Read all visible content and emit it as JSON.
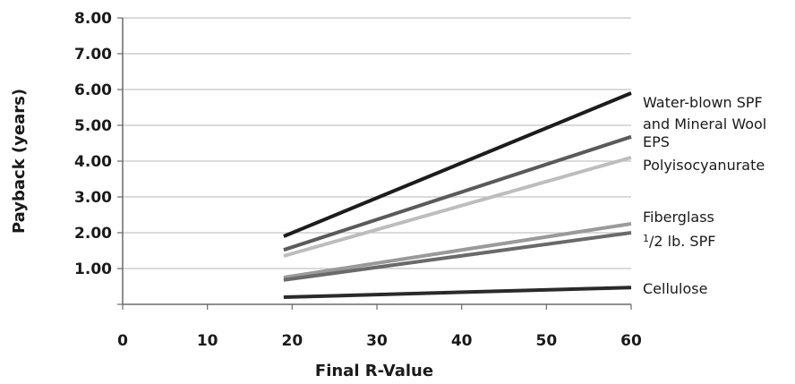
{
  "chart_data": {
    "type": "line",
    "xlabel": "Final R-Value",
    "ylabel": "Payback (years)",
    "xlim": [
      0,
      60
    ],
    "ylim": [
      0,
      8
    ],
    "xticks": [
      "0",
      "10",
      "20",
      "30",
      "40",
      "50",
      "60"
    ],
    "yticks": [
      "",
      "1.00",
      "2.00",
      "3.00",
      "4.00",
      "5.00",
      "6.00",
      "7.00",
      "8.00"
    ],
    "grid": "horizontal",
    "series": [
      {
        "name": "Water-blown SPF and Mineral Wool",
        "color": "#1c1c1c",
        "x": [
          19,
          60
        ],
        "y": [
          1.9,
          5.9
        ]
      },
      {
        "name": "EPS",
        "color": "#5a5a5a",
        "x": [
          19,
          60
        ],
        "y": [
          1.52,
          4.68
        ]
      },
      {
        "name": "Polyisocyanurate",
        "color": "#bdbdbd",
        "x": [
          19,
          60
        ],
        "y": [
          1.35,
          4.1
        ]
      },
      {
        "name": "Fiberglass",
        "color": "#9a9a9a",
        "x": [
          19,
          60
        ],
        "y": [
          0.75,
          2.25
        ]
      },
      {
        "name": "1/2 lb. SPF",
        "color": "#6a6a6a",
        "x": [
          19,
          60
        ],
        "y": [
          0.68,
          2.0
        ]
      },
      {
        "name": "Cellulose",
        "color": "#2a2a2a",
        "x": [
          19,
          60
        ],
        "y": [
          0.2,
          0.47
        ]
      }
    ]
  },
  "labels": {
    "water_line1": "Water-blown SPF",
    "water_line2": "and Mineral Wool",
    "eps": "EPS",
    "polyiso": "Polyisocyanurate",
    "fiberglass": "Fiberglass",
    "spf_sup": "1",
    "spf_rest": "/2 lb. SPF",
    "cellulose": "Cellulose"
  }
}
